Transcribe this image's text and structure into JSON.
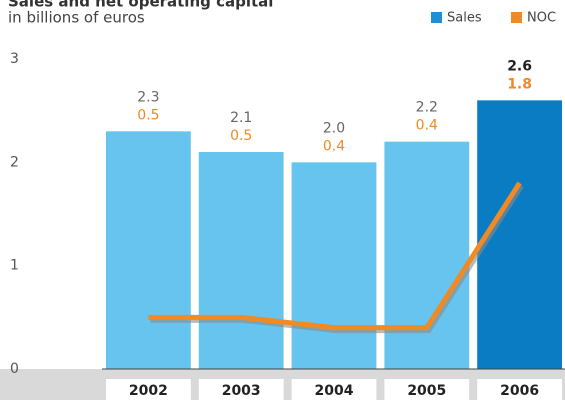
{
  "chart_data": {
    "type": "bar",
    "title": "Sales and net operating capital",
    "subtitle": "in billions of euros",
    "categories": [
      "2002",
      "2003",
      "2004",
      "2005",
      "2006"
    ],
    "series": [
      {
        "name": "Sales",
        "type": "bar",
        "color": "#1e8fd6",
        "colors": [
          "#66c4ee",
          "#66c4ee",
          "#66c4ee",
          "#66c4ee",
          "#0a7cc4"
        ],
        "values": [
          2.3,
          2.1,
          2.0,
          2.2,
          2.6
        ],
        "value_labels": [
          "2.3",
          "2.1",
          "2.0",
          "2.2",
          "2.6"
        ]
      },
      {
        "name": "NOC",
        "type": "line",
        "color": "#f08a24",
        "values": [
          0.5,
          0.5,
          0.4,
          0.4,
          1.8
        ],
        "value_labels": [
          "0.5",
          "0.5",
          "0.4",
          "0.4",
          "1.8"
        ]
      }
    ],
    "ylim": [
      0,
      3
    ],
    "yticks": [
      0,
      1,
      2,
      3
    ],
    "legend": "top-right"
  }
}
